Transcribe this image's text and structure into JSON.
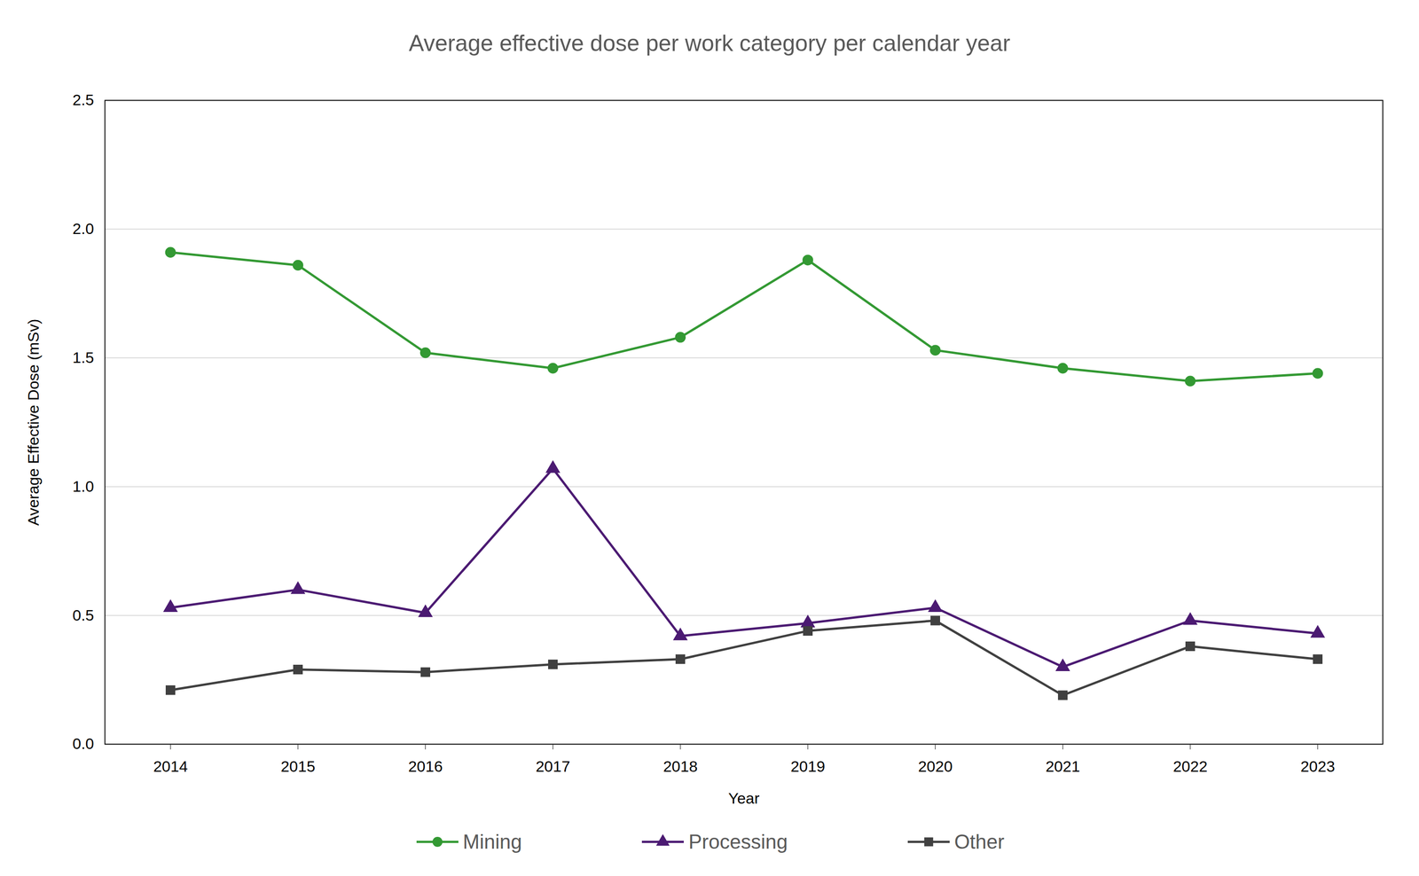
{
  "chart_data": {
    "type": "line",
    "title": "Average effective dose per work category per calendar year",
    "x_label": "Year",
    "y_label": "Average Effective Dose (mSv)",
    "categories": [
      "2014",
      "2015",
      "2016",
      "2017",
      "2018",
      "2019",
      "2020",
      "2021",
      "2022",
      "2023"
    ],
    "series": [
      {
        "name": "Mining",
        "color": "#339933",
        "marker": "circle",
        "line_style": "solid",
        "values": [
          1.91,
          1.86,
          1.52,
          1.46,
          1.58,
          1.88,
          1.53,
          1.46,
          1.41,
          1.44
        ]
      },
      {
        "name": "Processing",
        "color": "#4b1a72",
        "marker": "triangle",
        "line_style": "solid",
        "values": [
          0.53,
          0.6,
          0.51,
          1.07,
          0.42,
          0.47,
          0.53,
          0.3,
          0.48,
          0.43
        ]
      },
      {
        "name": "Other",
        "color": "#404040",
        "marker": "square",
        "line_style": "solid",
        "values": [
          0.21,
          0.29,
          0.28,
          0.31,
          0.33,
          0.44,
          0.48,
          0.19,
          0.38,
          0.33
        ]
      }
    ],
    "ylim": [
      0,
      2.5
    ],
    "yticks": [
      {
        "value": 0,
        "label": "0.0"
      },
      0.5,
      {
        "value": 1,
        "label": "1.0"
      },
      1.5,
      {
        "value": 2,
        "label": "2.0"
      },
      2.5
    ],
    "grid": true,
    "legend": "bottom"
  }
}
